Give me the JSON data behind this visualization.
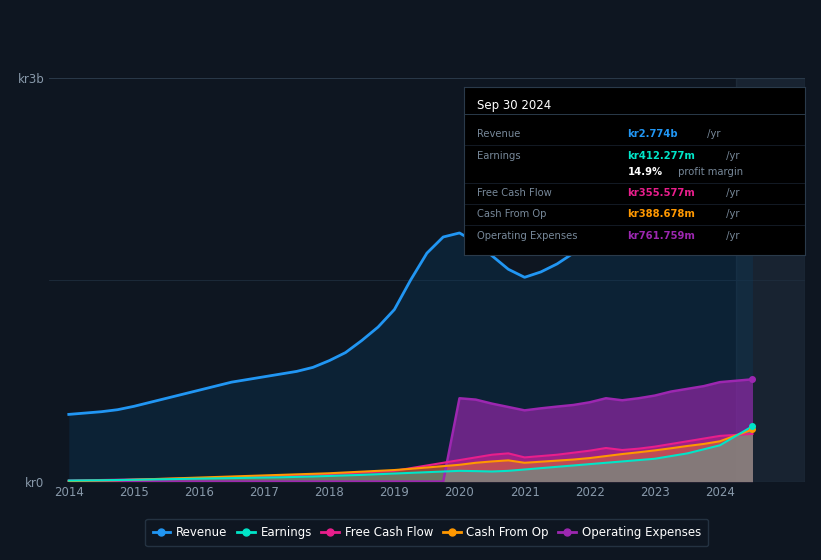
{
  "background_color": "#0e1621",
  "plot_bg_color": "#0e1621",
  "colors": {
    "revenue": "#2196f3",
    "earnings": "#00e5c8",
    "free_cash_flow": "#e91e8c",
    "cash_from_op": "#ff9800",
    "operating_expenses": "#9c27b0"
  },
  "years": [
    2014,
    2014.25,
    2014.5,
    2014.75,
    2015,
    2015.25,
    2015.5,
    2015.75,
    2016,
    2016.25,
    2016.5,
    2016.75,
    2017,
    2017.25,
    2017.5,
    2017.75,
    2018,
    2018.25,
    2018.5,
    2018.75,
    2019,
    2019.25,
    2019.5,
    2019.75,
    2020,
    2020.25,
    2020.5,
    2020.75,
    2021,
    2021.25,
    2021.5,
    2021.75,
    2022,
    2022.25,
    2022.5,
    2022.75,
    2023,
    2023.25,
    2023.5,
    2023.75,
    2024,
    2024.5
  ],
  "revenue": [
    500,
    510,
    520,
    535,
    560,
    590,
    620,
    650,
    680,
    710,
    740,
    760,
    780,
    800,
    820,
    850,
    900,
    960,
    1050,
    1150,
    1280,
    1500,
    1700,
    1820,
    1850,
    1780,
    1680,
    1580,
    1520,
    1560,
    1620,
    1700,
    1820,
    1980,
    2100,
    2200,
    2350,
    2480,
    2580,
    2650,
    2720,
    2774
  ],
  "earnings": [
    8,
    9,
    10,
    12,
    14,
    16,
    18,
    20,
    22,
    24,
    26,
    28,
    30,
    32,
    35,
    38,
    42,
    46,
    50,
    55,
    60,
    65,
    70,
    75,
    80,
    78,
    75,
    80,
    90,
    100,
    110,
    120,
    130,
    140,
    150,
    160,
    170,
    190,
    210,
    240,
    270,
    412
  ],
  "free_cash_flow": [
    8,
    10,
    12,
    14,
    16,
    18,
    20,
    22,
    25,
    28,
    32,
    36,
    40,
    44,
    48,
    52,
    56,
    62,
    68,
    74,
    80,
    100,
    120,
    140,
    160,
    180,
    200,
    210,
    180,
    190,
    200,
    215,
    230,
    250,
    235,
    245,
    260,
    280,
    300,
    320,
    340,
    355
  ],
  "cash_from_op": [
    4,
    6,
    8,
    10,
    14,
    18,
    22,
    26,
    30,
    34,
    38,
    42,
    46,
    50,
    54,
    58,
    62,
    68,
    74,
    80,
    86,
    95,
    105,
    115,
    125,
    140,
    150,
    158,
    140,
    148,
    156,
    164,
    175,
    190,
    205,
    218,
    232,
    248,
    265,
    280,
    300,
    388
  ],
  "operating_expenses": [
    0,
    0,
    0,
    0,
    0,
    0,
    0,
    0,
    0,
    0,
    0,
    0,
    0,
    0,
    0,
    0,
    0,
    0,
    0,
    0,
    0,
    0,
    0,
    0,
    620,
    610,
    580,
    555,
    530,
    545,
    558,
    570,
    590,
    620,
    605,
    620,
    640,
    670,
    690,
    710,
    740,
    761
  ],
  "ylim": [
    0,
    3000
  ],
  "xlim": [
    2013.7,
    2025.3
  ],
  "xticks": [
    2014,
    2015,
    2016,
    2017,
    2018,
    2019,
    2020,
    2021,
    2022,
    2023,
    2024
  ],
  "yticks": [
    0,
    3000
  ],
  "yticklabels": [
    "kr0",
    "kr3b"
  ],
  "legend_labels": [
    "Revenue",
    "Earnings",
    "Free Cash Flow",
    "Cash From Op",
    "Operating Expenses"
  ],
  "info": {
    "date": "Sep 30 2024",
    "rows": [
      {
        "label": "Revenue",
        "value": "kr2.774b",
        "suffix": " /yr",
        "value_color": "#2196f3"
      },
      {
        "label": "Earnings",
        "value": "kr412.277m",
        "suffix": " /yr",
        "value_color": "#00e5c8"
      },
      {
        "label": "",
        "value": "14.9%",
        "suffix": " profit margin",
        "value_color": "white"
      },
      {
        "label": "Free Cash Flow",
        "value": "kr355.577m",
        "suffix": " /yr",
        "value_color": "#e91e8c"
      },
      {
        "label": "Cash From Op",
        "value": "kr388.678m",
        "suffix": " /yr",
        "value_color": "#ff9800"
      },
      {
        "label": "Operating Expenses",
        "value": "kr761.759m",
        "suffix": " /yr",
        "value_color": "#9c27b0"
      }
    ]
  }
}
